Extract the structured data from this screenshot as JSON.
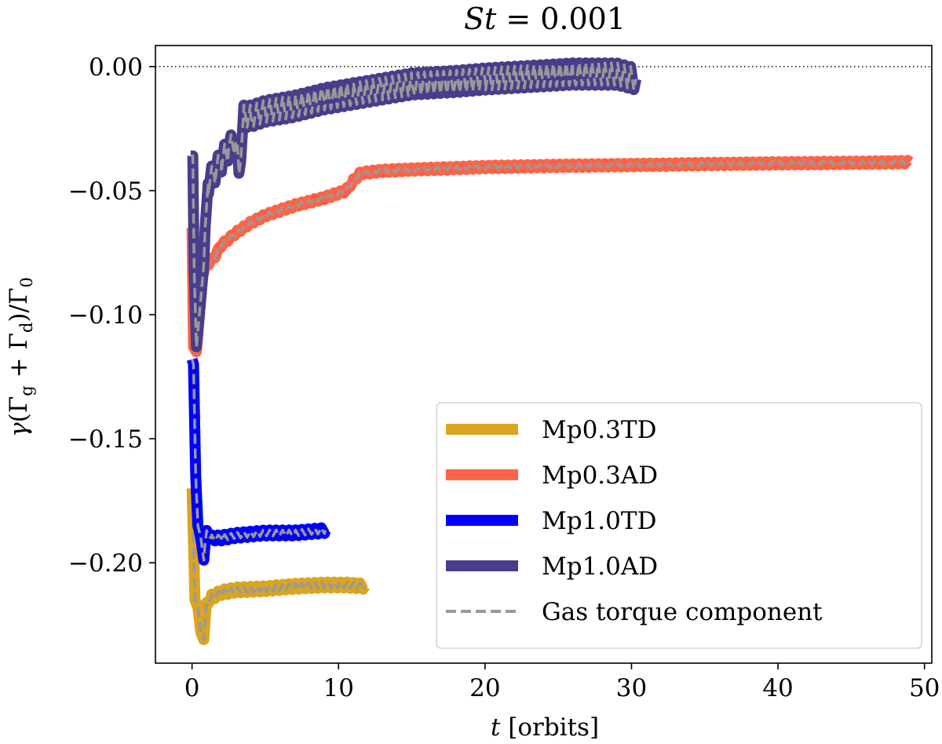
{
  "chart_data": {
    "type": "line",
    "title_math": "St",
    "title_eq": " = 0.001",
    "xlabel_var": "t",
    "xlabel_unit": " [orbits]",
    "ylabel": "γ(Γg + Γd)/Γ0",
    "ylabel_parts": {
      "gamma": "γ",
      "open": "(Γ",
      "sub_g": "g",
      "plus": " + Γ",
      "sub_d": "d",
      "close": ")/Γ",
      "sub_0": "0"
    },
    "xlim": [
      -2.5,
      50.5
    ],
    "ylim": [
      -0.2405,
      0.0085
    ],
    "xticks": [
      0,
      10,
      20,
      30,
      40,
      50
    ],
    "xtick_labels": [
      "0",
      "10",
      "20",
      "30",
      "40",
      "50"
    ],
    "yticks": [
      0.0,
      -0.05,
      -0.1,
      -0.15,
      -0.2
    ],
    "ytick_labels": [
      "0.00",
      "−0.05",
      "−0.10",
      "−0.15",
      "−0.20"
    ],
    "reference_line": {
      "y": 0.0,
      "style": "dotted"
    },
    "legend_position": "lower-right",
    "legend": [
      {
        "label": "Mp0.3TD",
        "color": "#DAA520"
      },
      {
        "label": "Mp0.3AD",
        "color": "#FF6347"
      },
      {
        "label": "Mp1.0TD",
        "color": "#0000FF"
      },
      {
        "label": "Mp1.0AD",
        "color": "#483D8B"
      },
      {
        "label": "Gas torque component",
        "color": "#999999",
        "dashed": true
      }
    ],
    "series": [
      {
        "name": "Mp0.3TD",
        "color": "#DAA520",
        "osc_amp": 0.0012,
        "x": [
          0.0,
          0.2,
          0.4,
          0.6,
          0.8,
          1.0,
          1.3,
          2.0,
          3.0,
          5.0,
          7.0,
          9.0,
          10.5,
          11.8
        ],
        "y": [
          -0.17,
          -0.215,
          -0.218,
          -0.228,
          -0.231,
          -0.216,
          -0.214,
          -0.212,
          -0.211,
          -0.2105,
          -0.2095,
          -0.209,
          -0.209,
          -0.2095
        ]
      },
      {
        "name": "Mp0.3AD",
        "color": "#FF6347",
        "osc_amp": 0.0007,
        "x": [
          0.0,
          0.1,
          0.3,
          0.5,
          0.7,
          1.0,
          1.5,
          2.0,
          3.0,
          4.0,
          5.0,
          7.0,
          9.0,
          10.5,
          11.0,
          11.5,
          13.0,
          15.0,
          20.0,
          25.0,
          30.0,
          35.0,
          40.0,
          45.0,
          49.0
        ],
        "y": [
          -0.065,
          -0.113,
          -0.115,
          -0.1,
          -0.085,
          -0.08,
          -0.077,
          -0.072,
          -0.067,
          -0.063,
          -0.06,
          -0.056,
          -0.053,
          -0.05,
          -0.046,
          -0.043,
          -0.042,
          -0.0415,
          -0.0405,
          -0.04,
          -0.0397,
          -0.0393,
          -0.039,
          -0.0388,
          -0.0385
        ]
      },
      {
        "name": "Mp1.0TD",
        "color": "#0000FF",
        "osc_amp": 0.0012,
        "x": [
          0.0,
          0.1,
          0.25,
          0.4,
          0.6,
          0.8,
          1.0,
          1.3,
          2.0,
          3.0,
          5.0,
          7.0,
          9.1
        ],
        "y": [
          -0.118,
          -0.12,
          -0.165,
          -0.185,
          -0.19,
          -0.199,
          -0.187,
          -0.19,
          -0.19,
          -0.189,
          -0.188,
          -0.188,
          -0.187
        ]
      },
      {
        "name": "Mp1.0AD",
        "color": "#483D8B",
        "osc_amp": 0.0045,
        "x": [
          -0.1,
          0.05,
          0.15,
          0.3,
          0.5,
          0.8,
          1.1,
          1.5,
          2.0,
          2.5,
          3.0,
          3.2,
          3.5,
          4.0,
          5.0,
          7.0,
          9.0,
          11.0,
          13.0,
          15.0,
          18.0,
          20.0,
          23.0,
          26.0,
          29.0,
          30.3
        ],
        "y": [
          -0.036,
          -0.036,
          -0.083,
          -0.113,
          -0.1,
          -0.08,
          -0.047,
          -0.043,
          -0.038,
          -0.033,
          -0.03,
          -0.043,
          -0.02,
          -0.02,
          -0.018,
          -0.016,
          -0.013,
          -0.011,
          -0.009,
          -0.007,
          -0.006,
          -0.005,
          -0.004,
          -0.003,
          -0.003,
          -0.005
        ]
      }
    ]
  }
}
